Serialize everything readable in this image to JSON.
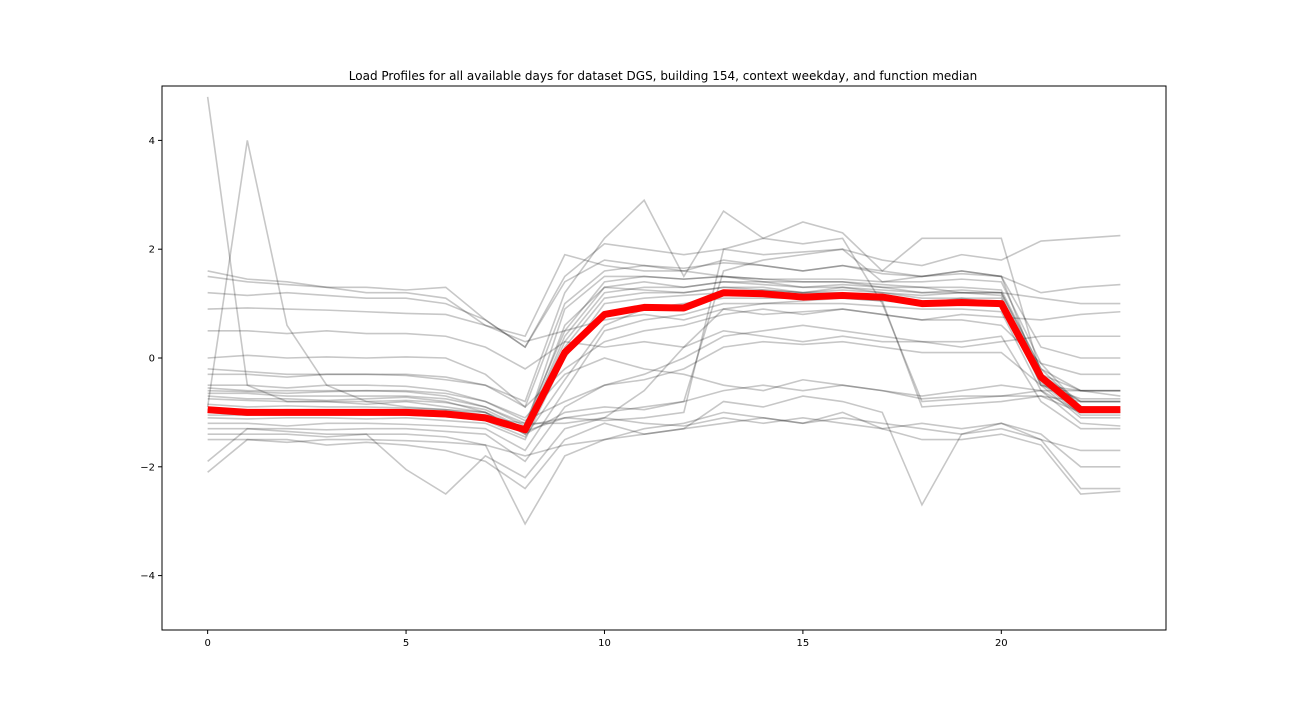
{
  "chart_data": {
    "type": "line",
    "title": "Load Profiles for all available days for dataset DGS, building 154, context weekday, and function median",
    "xlabel": "",
    "ylabel": "",
    "xlim": [
      -1.15,
      24.15
    ],
    "ylim": [
      -5,
      5
    ],
    "x_ticks": [
      0,
      5,
      10,
      15,
      20
    ],
    "x_tick_labels": [
      "0",
      "5",
      "10",
      "15",
      "20"
    ],
    "y_ticks": [
      -4,
      -2,
      0,
      2,
      4
    ],
    "y_tick_labels": [
      "−4",
      "−2",
      "0",
      "2",
      "4"
    ],
    "grid": false,
    "legend": "none",
    "x": [
      0,
      1,
      2,
      3,
      4,
      5,
      6,
      7,
      8,
      9,
      10,
      11,
      12,
      13,
      14,
      15,
      16,
      17,
      18,
      19,
      20,
      21,
      22,
      23
    ],
    "series": [
      {
        "role": "median",
        "color": "#ff0000",
        "values": [
          -0.95,
          -1.0,
          -1.0,
          -1.0,
          -1.0,
          -1.0,
          -1.03,
          -1.1,
          -1.32,
          0.1,
          0.8,
          0.93,
          0.92,
          1.2,
          1.18,
          1.12,
          1.15,
          1.12,
          1.0,
          1.02,
          1.0,
          -0.35,
          -0.95,
          -0.95
        ]
      },
      {
        "role": "daily-profiles",
        "color": "#000000",
        "profiles": [
          [
            -0.85,
            -0.9,
            -0.88,
            -0.9,
            -0.9,
            -0.92,
            -0.95,
            -1.05,
            -1.3,
            0.3,
            1.2,
            1.3,
            1.3,
            1.4,
            1.35,
            1.3,
            1.3,
            1.25,
            1.2,
            1.25,
            1.2,
            -0.3,
            -0.8,
            -0.8
          ],
          [
            -1.1,
            -1.12,
            -1.1,
            -1.1,
            -1.12,
            -1.1,
            -1.15,
            -1.2,
            -1.5,
            0.0,
            1.0,
            1.1,
            1.15,
            1.2,
            1.25,
            1.2,
            1.2,
            1.1,
            1.0,
            1.1,
            1.0,
            -0.5,
            -1.1,
            -1.1
          ],
          [
            -0.6,
            -0.62,
            -0.65,
            -0.62,
            -0.6,
            -0.62,
            -0.7,
            -0.9,
            -1.2,
            0.5,
            1.4,
            1.5,
            1.45,
            1.5,
            1.45,
            1.4,
            1.4,
            1.35,
            1.3,
            1.3,
            1.25,
            -0.2,
            -0.6,
            -0.6
          ],
          [
            -1.2,
            -1.2,
            -1.25,
            -1.2,
            -1.2,
            -1.22,
            -1.25,
            -1.3,
            -1.7,
            -0.6,
            0.5,
            0.7,
            0.8,
            1.0,
            1.0,
            1.0,
            1.0,
            0.95,
            0.9,
            0.9,
            0.85,
            -0.6,
            -1.2,
            -1.25
          ],
          [
            -0.7,
            -0.75,
            -0.75,
            -0.78,
            -0.75,
            -0.72,
            -0.8,
            -1.0,
            -1.4,
            -1.0,
            -0.9,
            -0.95,
            -0.8,
            1.6,
            1.8,
            1.9,
            2.0,
            1.4,
            1.5,
            1.6,
            1.5,
            -0.4,
            -0.8,
            -0.8
          ],
          [
            -1.0,
            -1.05,
            -1.0,
            -1.02,
            -1.0,
            -1.05,
            -1.08,
            -1.15,
            -1.35,
            -1.1,
            -1.15,
            -1.1,
            -1.0,
            2.0,
            2.2,
            2.1,
            2.2,
            1.0,
            -0.8,
            -0.75,
            -0.7,
            -0.6,
            -1.0,
            -1.0
          ],
          [
            0.9,
            0.92,
            0.9,
            0.88,
            0.85,
            0.82,
            0.8,
            0.6,
            0.3,
            0.5,
            0.7,
            0.8,
            0.7,
            0.9,
            0.8,
            0.85,
            0.9,
            0.8,
            0.7,
            0.8,
            0.75,
            0.7,
            0.8,
            0.85
          ],
          [
            4.8,
            -0.5,
            -0.8,
            -0.8,
            -0.85,
            -0.8,
            -0.9,
            -1.0,
            -1.4,
            0.2,
            1.1,
            1.2,
            1.2,
            1.3,
            1.3,
            1.2,
            1.3,
            1.2,
            1.1,
            1.1,
            1.1,
            -0.4,
            -0.9,
            -0.9
          ],
          [
            -0.9,
            4.0,
            0.6,
            -0.5,
            -0.8,
            -0.9,
            -0.95,
            -1.0,
            -1.3,
            0.4,
            1.3,
            1.4,
            1.3,
            1.4,
            1.4,
            1.3,
            1.35,
            1.3,
            1.2,
            1.2,
            1.2,
            -0.2,
            -0.9,
            -0.95
          ],
          [
            1.6,
            1.45,
            1.4,
            1.3,
            1.3,
            1.25,
            1.3,
            0.7,
            0.2,
            1.5,
            2.1,
            2.0,
            1.9,
            2.0,
            1.9,
            1.95,
            2.0,
            1.8,
            1.7,
            1.9,
            1.8,
            2.15,
            2.2,
            2.25
          ],
          [
            -2.1,
            -1.5,
            -1.5,
            -1.6,
            -1.55,
            -1.6,
            -1.7,
            -1.9,
            -2.4,
            -1.5,
            -1.2,
            -1.4,
            -1.3,
            -0.8,
            -0.9,
            -0.7,
            -0.8,
            -1.0,
            -2.7,
            -1.4,
            -1.2,
            -1.5,
            -2.4,
            -2.4
          ],
          [
            -1.4,
            -1.4,
            -1.4,
            -1.45,
            -1.4,
            -1.4,
            -1.45,
            -1.6,
            -3.05,
            -1.8,
            -1.5,
            -1.3,
            -1.2,
            -1.0,
            -1.1,
            -1.2,
            -1.0,
            -1.3,
            -1.5,
            -1.5,
            -1.4,
            -1.6,
            -2.5,
            -2.45
          ],
          [
            -0.3,
            -0.3,
            -0.35,
            -0.3,
            -0.3,
            -0.32,
            -0.4,
            -0.5,
            -0.8,
            1.2,
            2.2,
            2.9,
            1.5,
            2.7,
            2.2,
            2.5,
            2.3,
            1.6,
            2.2,
            2.2,
            2.2,
            -0.3,
            -0.6,
            -0.7
          ],
          [
            0.0,
            0.05,
            0.0,
            0.02,
            0.0,
            0.02,
            0.0,
            -0.3,
            -0.9,
            1.0,
            1.6,
            1.7,
            1.65,
            1.75,
            1.7,
            1.6,
            1.7,
            1.55,
            1.5,
            1.55,
            1.5,
            0.2,
            0.0,
            0.0
          ],
          [
            -1.3,
            -1.3,
            -1.3,
            -1.32,
            -1.3,
            -1.3,
            -1.35,
            -1.4,
            -1.9,
            -0.9,
            -0.5,
            -0.3,
            0.0,
            0.4,
            0.5,
            0.6,
            0.5,
            0.4,
            0.3,
            0.3,
            0.4,
            -0.8,
            -1.3,
            -1.3
          ],
          [
            0.5,
            0.5,
            0.45,
            0.5,
            0.45,
            0.45,
            0.4,
            0.2,
            -0.2,
            0.3,
            0.2,
            0.3,
            0.2,
            0.5,
            0.4,
            0.3,
            0.4,
            0.3,
            0.3,
            0.2,
            0.3,
            0.4,
            0.4,
            0.4
          ],
          [
            -0.5,
            -0.5,
            -0.55,
            -0.5,
            -0.5,
            -0.52,
            -0.6,
            -0.8,
            -1.1,
            -0.3,
            0.0,
            -0.2,
            -0.3,
            -0.5,
            -0.6,
            -0.4,
            -0.5,
            -0.6,
            -0.7,
            -0.6,
            -0.5,
            -0.6,
            -0.6,
            -0.6
          ],
          [
            -0.95,
            -0.97,
            -0.95,
            -0.96,
            -0.95,
            -0.96,
            -1.0,
            -1.1,
            -1.2,
            -1.2,
            -1.1,
            -0.6,
            0.2,
            0.9,
            1.0,
            1.05,
            1.1,
            1.05,
            -0.9,
            -0.85,
            -0.8,
            -0.7,
            -1.0,
            -1.0
          ],
          [
            -1.5,
            -1.5,
            -1.55,
            -1.5,
            -1.5,
            -1.52,
            -1.55,
            -1.6,
            -1.8,
            -1.6,
            -1.5,
            -1.4,
            -1.3,
            -1.2,
            -1.1,
            -1.2,
            -1.1,
            -1.2,
            -1.3,
            -1.4,
            -1.3,
            -1.5,
            -1.7,
            -1.7
          ],
          [
            1.2,
            1.15,
            1.2,
            1.15,
            1.1,
            1.1,
            1.0,
            0.7,
            0.2,
            1.4,
            1.8,
            1.7,
            1.6,
            1.8,
            1.7,
            1.6,
            1.7,
            1.6,
            1.5,
            1.6,
            1.5,
            1.2,
            1.3,
            1.35
          ],
          [
            -0.75,
            -0.78,
            -0.8,
            -0.8,
            -0.8,
            -0.78,
            -0.82,
            -0.95,
            -1.3,
            0.6,
            1.3,
            1.25,
            1.2,
            1.3,
            1.25,
            1.2,
            1.25,
            1.2,
            1.15,
            1.2,
            1.15,
            -0.5,
            -0.75,
            -0.75
          ],
          [
            -1.05,
            -1.05,
            -1.05,
            -1.05,
            -1.05,
            -1.05,
            -1.05,
            -1.15,
            -1.45,
            -0.4,
            0.6,
            0.9,
            1.0,
            1.1,
            1.1,
            1.1,
            1.1,
            1.05,
            1.0,
            1.0,
            1.0,
            -0.45,
            -1.05,
            -1.05
          ],
          [
            -0.2,
            -0.25,
            -0.3,
            -0.3,
            -0.3,
            -0.3,
            -0.35,
            -0.5,
            -0.9,
            -0.2,
            0.3,
            0.5,
            0.6,
            0.8,
            0.9,
            0.8,
            0.9,
            0.8,
            0.7,
            0.7,
            0.6,
            -0.1,
            -0.3,
            -0.3
          ],
          [
            -0.65,
            -0.65,
            -0.7,
            -0.7,
            -0.7,
            -0.7,
            -0.75,
            -0.9,
            -1.25,
            -1.1,
            -1.0,
            -0.9,
            -0.8,
            -0.6,
            -0.5,
            -0.6,
            -0.5,
            -0.6,
            -0.75,
            -0.7,
            -0.7,
            -0.7,
            -0.8,
            -0.8
          ],
          [
            -1.9,
            -1.3,
            -1.35,
            -1.4,
            -1.4,
            -2.05,
            -2.5,
            -1.8,
            -2.2,
            -1.3,
            -1.1,
            -1.2,
            -1.25,
            -1.1,
            -1.2,
            -1.1,
            -1.2,
            -1.3,
            -1.2,
            -1.3,
            -1.2,
            -1.4,
            -2.0,
            -2.0
          ],
          [
            1.5,
            1.4,
            1.35,
            1.3,
            1.2,
            1.2,
            1.1,
            0.6,
            0.4,
            1.9,
            1.7,
            1.6,
            1.6,
            1.5,
            1.4,
            1.4,
            1.4,
            1.3,
            1.3,
            1.2,
            1.2,
            1.1,
            1.0,
            1.0
          ],
          [
            -0.95,
            -1.0,
            -1.0,
            -1.0,
            -1.0,
            -1.0,
            -1.0,
            -1.05,
            -1.3,
            0.9,
            1.5,
            1.5,
            1.45,
            1.5,
            1.45,
            1.45,
            1.45,
            1.4,
            1.4,
            1.45,
            1.4,
            -0.1,
            -0.9,
            -0.95
          ],
          [
            -0.55,
            -0.6,
            -0.6,
            -0.6,
            -0.6,
            -0.6,
            -0.65,
            -0.8,
            -1.15,
            -0.8,
            -0.5,
            -0.4,
            -0.2,
            0.2,
            0.3,
            0.25,
            0.3,
            0.2,
            0.1,
            0.1,
            0.1,
            -0.5,
            -0.6,
            -0.6
          ]
        ]
      }
    ]
  }
}
